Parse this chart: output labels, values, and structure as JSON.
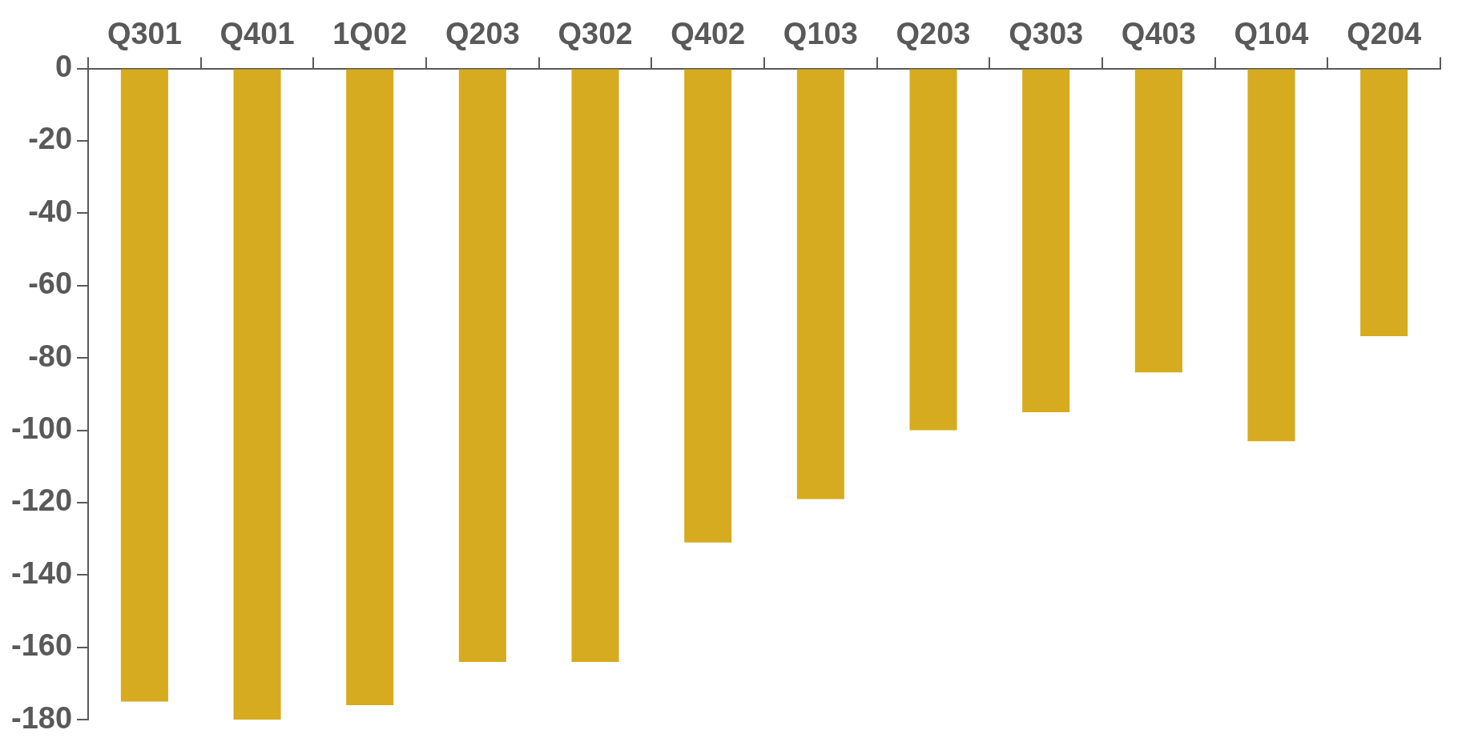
{
  "chart_data": {
    "type": "bar",
    "categories": [
      "Q301",
      "Q401",
      "1Q02",
      "Q203",
      "Q302",
      "Q402",
      "Q103",
      "Q203",
      "Q303",
      "Q403",
      "Q104",
      "Q204"
    ],
    "values": [
      -175,
      -180,
      -176,
      -164,
      -164,
      -131,
      -119,
      -100,
      -95,
      -84,
      -103,
      -74
    ],
    "color": "#d6ab1f",
    "ylim": [
      -180,
      0
    ],
    "yticks": [
      0,
      -20,
      -40,
      -60,
      -80,
      -100,
      -120,
      -140,
      -160,
      -180
    ],
    "grid": false,
    "legend": false
  }
}
